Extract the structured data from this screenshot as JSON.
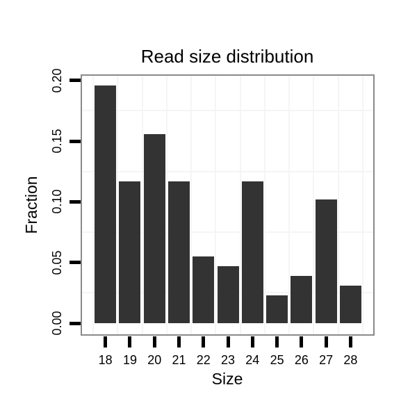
{
  "colors": {
    "bar": "#333333",
    "panel_border": "#8a8a8a",
    "grid": "#f5f5f5",
    "tick": "#000000",
    "text": "#000000",
    "background": "#ffffff"
  },
  "chart_data": {
    "type": "bar",
    "title": "Read size distribution",
    "xlabel": "Size",
    "ylabel": "Fraction",
    "categories": [
      "18",
      "19",
      "20",
      "21",
      "22",
      "23",
      "24",
      "25",
      "26",
      "27",
      "28"
    ],
    "values": [
      0.196,
      0.117,
      0.156,
      0.117,
      0.055,
      0.047,
      0.117,
      0.023,
      0.039,
      0.102,
      0.031
    ],
    "y_tick_labels": [
      "0.00",
      "0.05",
      "0.10",
      "0.15",
      "0.20"
    ],
    "y_tick_values": [
      0.0,
      0.05,
      0.1,
      0.15,
      0.2
    ],
    "minor_gridlines_y": [
      0.025,
      0.075,
      0.125,
      0.175
    ],
    "ylim": [
      -0.01,
      0.205
    ],
    "grid": "minor-light-gray",
    "legend": "none",
    "bar_color": "#333333"
  }
}
